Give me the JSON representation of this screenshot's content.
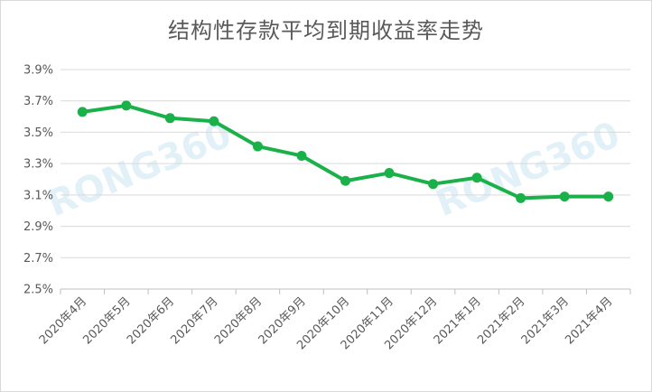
{
  "chart_data": {
    "type": "line",
    "title": "结构性存款平均到期收益率走势",
    "xlabel": "",
    "ylabel": "",
    "categories": [
      "2020年4月",
      "2020年5月",
      "2020年6月",
      "2020年7月",
      "2020年8月",
      "2020年9月",
      "2020年10月",
      "2020年11月",
      "2020年12月",
      "2021年1月",
      "2021年2月",
      "2021年3月",
      "2021年4月"
    ],
    "series": [
      {
        "values": [
          3.63,
          3.67,
          3.59,
          3.57,
          3.41,
          3.35,
          3.19,
          3.24,
          3.17,
          3.21,
          3.08,
          3.09,
          3.09
        ]
      }
    ],
    "ylim": [
      2.5,
      3.9
    ],
    "yticks": [
      "2.5%",
      "2.7%",
      "2.9%",
      "3.1%",
      "3.3%",
      "3.5%",
      "3.7%",
      "3.9%"
    ],
    "grid": "horizontal",
    "line_color": "#1bb14a"
  },
  "watermark": [
    "RONG360",
    "RONG360"
  ]
}
